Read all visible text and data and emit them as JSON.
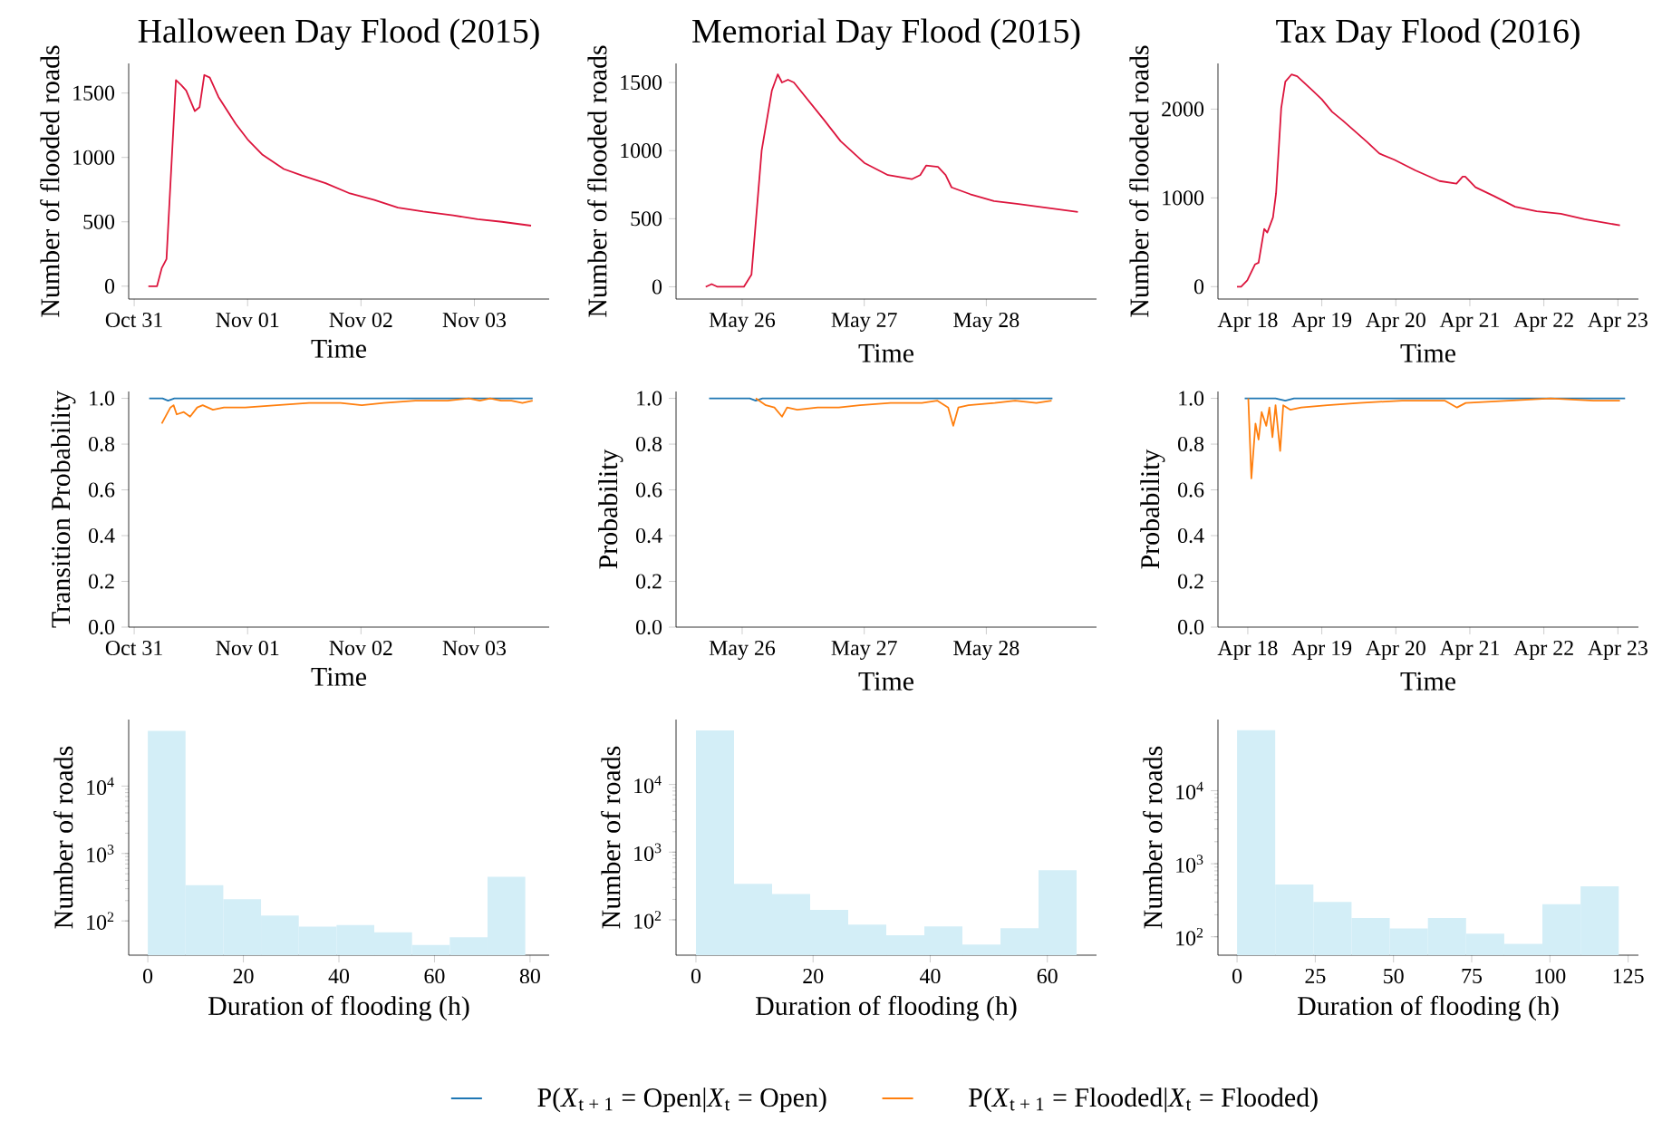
{
  "chart_data": [
    {
      "type": "line",
      "title": "Halloween Day Flood (2015)",
      "xlabel": "Time",
      "ylabel": "Number of flooded roads",
      "xlim": [
        "2015-10-30T22:50",
        "2015-11-03T15:50"
      ],
      "ylim": [
        -100,
        1730
      ],
      "xticks": [
        {
          "value": "2015-10-31",
          "label": "Oct 31"
        },
        {
          "value": "2015-11-01",
          "label": "Nov 01"
        },
        {
          "value": "2015-11-02",
          "label": "Nov 02"
        },
        {
          "value": "2015-11-03",
          "label": "Nov 03"
        }
      ],
      "yticks": [
        0,
        500,
        1000,
        1500
      ],
      "series": [
        {
          "color": "#dc143c",
          "x": [
            "2015-10-31T03:00",
            "2015-10-31T04:50",
            "2015-10-31T05:50",
            "2015-10-31T06:50",
            "2015-10-31T08:50",
            "2015-10-31T10:00",
            "2015-10-31T11:00",
            "2015-10-31T12:50",
            "2015-10-31T13:50",
            "2015-10-31T14:50",
            "2015-10-31T16:00",
            "2015-10-31T17:50",
            "2015-10-31T21:30",
            "2015-11-01T00:00",
            "2015-11-01T03:10",
            "2015-11-01T07:40",
            "2015-11-01T11:30",
            "2015-11-01T16:30",
            "2015-11-01T21:40",
            "2015-11-02T02:50",
            "2015-11-02T07:50",
            "2015-11-02T13:10",
            "2015-11-02T19:30",
            "2015-11-03T00:40",
            "2015-11-03T05:50",
            "2015-11-03T12:00"
          ],
          "values": [
            0,
            0,
            140,
            210,
            1600,
            1560,
            1520,
            1360,
            1390,
            1640,
            1620,
            1470,
            1260,
            1140,
            1020,
            910,
            860,
            800,
            720,
            670,
            610,
            580,
            550,
            520,
            500,
            470
          ]
        }
      ]
    },
    {
      "type": "line",
      "title": "Memorial Day Flood (2015)",
      "xlabel": "Time",
      "ylabel": "Number of flooded roads",
      "xlim": [
        "2015-05-25T11:00",
        "2015-05-28T21:40"
      ],
      "ylim": [
        -90,
        1640
      ],
      "xticks": [
        {
          "value": "2015-05-26",
          "label": "May 26"
        },
        {
          "value": "2015-05-27",
          "label": "May 27"
        },
        {
          "value": "2015-05-28",
          "label": "May 28"
        }
      ],
      "yticks": [
        0,
        500,
        1000,
        1500
      ],
      "series": [
        {
          "color": "#dc143c",
          "x": [
            "2015-05-25T16:50",
            "2015-05-25T18:00",
            "2015-05-25T19:10",
            "2015-05-26T00:20",
            "2015-05-26T01:50",
            "2015-05-26T03:50",
            "2015-05-26T05:50",
            "2015-05-26T07:00",
            "2015-05-26T07:50",
            "2015-05-26T09:00",
            "2015-05-26T10:10",
            "2015-05-26T16:00",
            "2015-05-26T19:20",
            "2015-05-27T00:00",
            "2015-05-27T04:40",
            "2015-05-27T09:20",
            "2015-05-27T11:00",
            "2015-05-27T12:10",
            "2015-05-27T14:30",
            "2015-05-27T16:00",
            "2015-05-27T17:10",
            "2015-05-27T20:50",
            "2015-05-28T01:30",
            "2015-05-28T06:00",
            "2015-05-28T12:00",
            "2015-05-28T18:00"
          ],
          "values": [
            0,
            20,
            0,
            0,
            90,
            1000,
            1440,
            1560,
            1500,
            1520,
            1500,
            1230,
            1070,
            910,
            820,
            790,
            820,
            890,
            880,
            820,
            730,
            680,
            630,
            610,
            580,
            550
          ]
        }
      ]
    },
    {
      "type": "line",
      "title": "Tax Day Flood (2016)",
      "xlabel": "Time",
      "ylabel": "Number of flooded roads",
      "xlim": [
        "2016-04-17T14:20",
        "2016-04-23T06:40"
      ],
      "ylim": [
        -140,
        2515
      ],
      "xticks": [
        {
          "value": "2016-04-18",
          "label": "Apr 18"
        },
        {
          "value": "2016-04-19",
          "label": "Apr 19"
        },
        {
          "value": "2016-04-20",
          "label": "Apr 20"
        },
        {
          "value": "2016-04-21",
          "label": "Apr 21"
        },
        {
          "value": "2016-04-22",
          "label": "Apr 22"
        },
        {
          "value": "2016-04-23",
          "label": "Apr 23"
        }
      ],
      "yticks": [
        0,
        1000,
        2000
      ],
      "series": [
        {
          "color": "#dc143c",
          "x": [
            "2016-04-17T20:30",
            "2016-04-17T21:50",
            "2016-04-17T23:50",
            "2016-04-18T02:20",
            "2016-04-18T03:30",
            "2016-04-18T05:20",
            "2016-04-18T06:20",
            "2016-04-18T08:10",
            "2016-04-18T09:10",
            "2016-04-18T10:50",
            "2016-04-18T12:10",
            "2016-04-18T14:10",
            "2016-04-18T16:00",
            "2016-04-18T21:00",
            "2016-04-19T00:00",
            "2016-04-19T03:20",
            "2016-04-19T06:50",
            "2016-04-19T14:40",
            "2016-04-19T18:40",
            "2016-04-19T23:30",
            "2016-04-20T06:20",
            "2016-04-20T14:10",
            "2016-04-20T19:40",
            "2016-04-20T21:40",
            "2016-04-20T22:30",
            "2016-04-21T01:50",
            "2016-04-21T07:50",
            "2016-04-21T14:40",
            "2016-04-21T21:40",
            "2016-04-22T05:30",
            "2016-04-22T13:10",
            "2016-04-23T00:40"
          ],
          "values": [
            0,
            0,
            70,
            250,
            270,
            650,
            610,
            780,
            1050,
            2010,
            2310,
            2390,
            2370,
            2210,
            2110,
            1970,
            1870,
            1630,
            1500,
            1430,
            1310,
            1190,
            1160,
            1240,
            1240,
            1120,
            1020,
            900,
            850,
            820,
            760,
            690
          ]
        }
      ]
    },
    {
      "type": "line",
      "xlabel": "Time",
      "ylabel": "Transition Probability",
      "xlim": [
        "2015-10-30T22:50",
        "2015-11-03T15:50"
      ],
      "ylim": [
        0,
        1.03
      ],
      "xticks": [
        {
          "value": "2015-10-31",
          "label": "Oct 31"
        },
        {
          "value": "2015-11-01",
          "label": "Nov 01"
        },
        {
          "value": "2015-11-02",
          "label": "Nov 02"
        },
        {
          "value": "2015-11-03",
          "label": "Nov 03"
        }
      ],
      "yticks": [
        {
          "value": 0,
          "label": "0.0"
        },
        0.2,
        0.4,
        0.6,
        0.8,
        {
          "value": 1,
          "label": "1.0"
        }
      ],
      "series": [
        {
          "color": "#1f77b4",
          "x": [
            "2015-10-31T03:10",
            "2015-10-31T06:00",
            "2015-10-31T07:10",
            "2015-10-31T08:30",
            "2015-11-03T12:20"
          ],
          "values": [
            1.0,
            1.0,
            0.99,
            1.0,
            1.0
          ]
        },
        {
          "color": "#ff7f0e",
          "x": [
            "2015-10-31T05:50",
            "2015-10-31T07:40",
            "2015-10-31T08:20",
            "2015-10-31T09:00",
            "2015-10-31T10:30",
            "2015-10-31T11:50",
            "2015-10-31T13:20",
            "2015-10-31T14:30",
            "2015-10-31T16:40",
            "2015-10-31T19:00",
            "2015-10-31T23:30",
            "2015-11-01T06:10",
            "2015-11-01T13:00",
            "2015-11-01T19:40",
            "2015-11-02T00:10",
            "2015-11-02T04:50",
            "2015-11-02T11:30",
            "2015-11-02T18:20",
            "2015-11-02T22:50",
            "2015-11-03T01:10",
            "2015-11-03T03:20",
            "2015-11-03T05:40",
            "2015-11-03T07:50",
            "2015-11-03T10:10",
            "2015-11-03T12:20"
          ],
          "values": [
            0.89,
            0.96,
            0.97,
            0.93,
            0.94,
            0.92,
            0.96,
            0.97,
            0.95,
            0.96,
            0.96,
            0.97,
            0.98,
            0.98,
            0.97,
            0.98,
            0.99,
            0.99,
            1.0,
            0.99,
            1.0,
            0.99,
            0.99,
            0.98,
            0.99
          ]
        }
      ]
    },
    {
      "type": "line",
      "xlabel": "Time",
      "ylabel": "Probability",
      "legend": "bottom",
      "xlim": [
        "2015-05-25T11:00",
        "2015-05-28T21:40"
      ],
      "ylim": [
        0,
        1.03
      ],
      "xticks": [
        {
          "value": "2015-05-26",
          "label": "May 26"
        },
        {
          "value": "2015-05-27",
          "label": "May 27"
        },
        {
          "value": "2015-05-28",
          "label": "May 28"
        }
      ],
      "yticks": [
        {
          "value": 0,
          "label": "0.0"
        },
        0.2,
        0.4,
        0.6,
        0.8,
        {
          "value": 1,
          "label": "1.0"
        }
      ],
      "series": [
        {
          "name": "P(*X*$_{t + 1}$ = Open|*X*$_{t}$ = Open)",
          "color": "#1f77b4",
          "x": [
            "2015-05-25T17:30",
            "2015-05-26T01:30",
            "2015-05-26T02:40",
            "2015-05-26T04:00",
            "2015-05-28T13:00"
          ],
          "values": [
            1.0,
            1.0,
            0.99,
            1.0,
            1.0
          ]
        },
        {
          "name": "P(*X*$_{t + 1}$ = Flooded|*X*$_{t}$ = Flooded)",
          "color": "#ff7f0e",
          "x": [
            "2015-05-26T02:40",
            "2015-05-26T04:40",
            "2015-05-26T06:20",
            "2015-05-26T07:50",
            "2015-05-26T08:50",
            "2015-05-26T10:50",
            "2015-05-26T14:50",
            "2015-05-26T19:00",
            "2015-05-26T23:10",
            "2015-05-27T05:10",
            "2015-05-27T11:20",
            "2015-05-27T14:20",
            "2015-05-27T16:30",
            "2015-05-27T17:30",
            "2015-05-27T18:30",
            "2015-05-27T20:30",
            "2015-05-28T01:40",
            "2015-05-28T05:40",
            "2015-05-28T09:50",
            "2015-05-28T12:50"
          ],
          "values": [
            1.0,
            0.97,
            0.96,
            0.92,
            0.96,
            0.95,
            0.96,
            0.96,
            0.97,
            0.98,
            0.98,
            0.99,
            0.96,
            0.88,
            0.96,
            0.97,
            0.98,
            0.99,
            0.98,
            0.99
          ]
        }
      ]
    },
    {
      "type": "line",
      "xlabel": "Time",
      "ylabel": "Probability",
      "xlim": [
        "2016-04-17T14:20",
        "2016-04-23T06:40"
      ],
      "ylim": [
        0,
        1.03
      ],
      "xticks": [
        {
          "value": "2016-04-18",
          "label": "Apr 18"
        },
        {
          "value": "2016-04-19",
          "label": "Apr 19"
        },
        {
          "value": "2016-04-20",
          "label": "Apr 20"
        },
        {
          "value": "2016-04-21",
          "label": "Apr 21"
        },
        {
          "value": "2016-04-22",
          "label": "Apr 22"
        },
        {
          "value": "2016-04-23",
          "label": "Apr 23"
        }
      ],
      "yticks": [
        {
          "value": 0,
          "label": "0.0"
        },
        0.2,
        0.4,
        0.6,
        0.8,
        {
          "value": 1,
          "label": "1.0"
        }
      ],
      "series": [
        {
          "color": "#1f77b4",
          "x": [
            "2016-04-17T23:00",
            "2016-04-18T09:00",
            "2016-04-18T12:10",
            "2016-04-18T15:00",
            "2016-04-23T02:20"
          ],
          "values": [
            1.0,
            1.0,
            0.99,
            1.0,
            1.0
          ]
        },
        {
          "color": "#ff7f0e",
          "x": [
            "2016-04-18T00:10",
            "2016-04-18T01:10",
            "2016-04-18T02:30",
            "2016-04-18T03:30",
            "2016-04-18T04:30",
            "2016-04-18T06:00",
            "2016-04-18T07:00",
            "2016-04-18T08:00",
            "2016-04-18T09:00",
            "2016-04-18T10:30",
            "2016-04-18T11:30",
            "2016-04-18T13:50",
            "2016-04-18T17:20",
            "2016-04-19T01:50",
            "2016-04-19T12:10",
            "2016-04-20T02:00",
            "2016-04-20T15:50",
            "2016-04-20T19:50",
            "2016-04-20T22:40",
            "2016-04-21T12:30",
            "2016-04-22T02:10",
            "2016-04-22T16:10",
            "2016-04-23T00:40"
          ],
          "values": [
            1.0,
            0.65,
            0.89,
            0.82,
            0.94,
            0.88,
            0.96,
            0.83,
            0.97,
            0.77,
            0.97,
            0.95,
            0.96,
            0.97,
            0.98,
            0.99,
            0.99,
            0.96,
            0.98,
            0.99,
            1.0,
            0.99,
            0.99
          ]
        }
      ]
    },
    {
      "type": "histogram",
      "xlabel": "Duration of flooding (h)",
      "ylabel": "Number of roads",
      "log": "y",
      "color": "#d3eef7",
      "xlim": [
        -4,
        84
      ],
      "ylim": [
        31,
        97000
      ],
      "xticks": [
        0,
        20,
        40,
        60,
        80
      ],
      "yticks": [
        {
          "value": 100,
          "label": "10$^{2}$"
        },
        {
          "value": 1000,
          "label": "10$^{3}$"
        },
        {
          "value": 10000,
          "label": "10$^{4}$"
        }
      ],
      "bins": [
        0,
        7.9,
        15.8,
        23.7,
        31.6,
        39.5,
        47.4,
        55.3,
        63.2,
        71.1,
        79
      ],
      "values": [
        66000,
        340,
        210,
        120,
        82,
        87,
        68,
        44,
        57,
        450
      ]
    },
    {
      "type": "histogram",
      "xlabel": "Duration of flooding (h)",
      "ylabel": "Number of roads",
      "log": "y",
      "color": "#d3eef7",
      "xlim": [
        -3.4,
        68.4
      ],
      "ylim": [
        30,
        91000
      ],
      "xticks": [
        0,
        20,
        40,
        60
      ],
      "yticks": [
        {
          "value": 100,
          "label": "10$^{2}$"
        },
        {
          "value": 1000,
          "label": "10$^{3}$"
        },
        {
          "value": 10000,
          "label": "10$^{4}$"
        }
      ],
      "bins": [
        0,
        6.5,
        13,
        19.5,
        26,
        32.5,
        39,
        45.5,
        52,
        58.5,
        65
      ],
      "values": [
        63000,
        340,
        240,
        140,
        85,
        59,
        80,
        43,
        75,
        540
      ]
    },
    {
      "type": "histogram",
      "xlabel": "Duration of flooding (h)",
      "ylabel": "Number of roads",
      "log": "y",
      "color": "#d3eef7",
      "xlim": [
        -6.1,
        128.3
      ],
      "ylim": [
        56,
        94000
      ],
      "xticks": [
        0,
        25,
        50,
        75,
        100,
        125
      ],
      "yticks": [
        {
          "value": 100,
          "label": "10$^{2}$"
        },
        {
          "value": 1000,
          "label": "10$^{3}$"
        },
        {
          "value": 10000,
          "label": "10$^{4}$"
        }
      ],
      "bins": [
        0,
        12.2,
        24.4,
        36.6,
        48.8,
        61,
        73.2,
        85.4,
        97.6,
        109.8,
        122
      ],
      "values": [
        67000,
        520,
        300,
        180,
        130,
        180,
        110,
        80,
        280,
        490
      ]
    }
  ]
}
